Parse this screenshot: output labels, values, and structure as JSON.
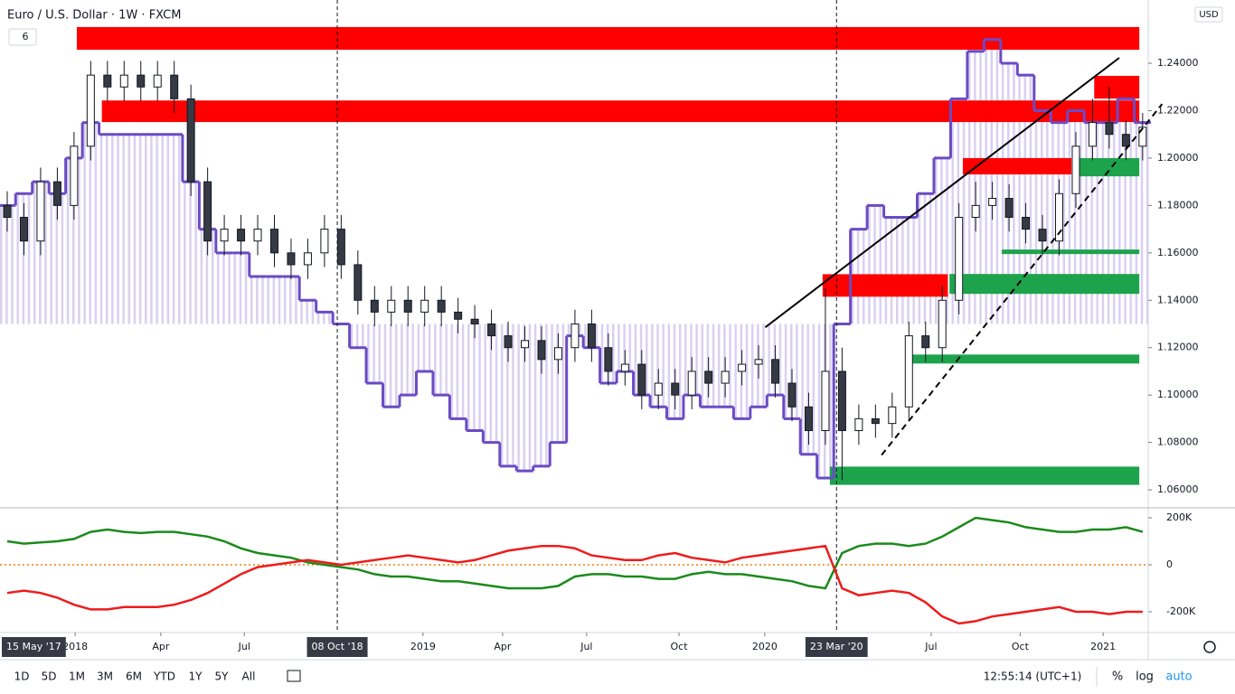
{
  "header": {
    "title": "Euro / U.S. Dollar · 1W · FXCM",
    "badge": "6",
    "currency": "USD"
  },
  "toolbar": {
    "ranges": [
      "1D",
      "5D",
      "1M",
      "3M",
      "6M",
      "YTD",
      "1Y",
      "5Y",
      "All"
    ],
    "clock": "12:55:14 (UTC+1)",
    "percent": "%",
    "log": "log",
    "auto": "auto"
  },
  "chart_data": [
    {
      "type": "candlestick",
      "x": [
        0,
        3,
        6,
        9,
        12,
        15,
        18,
        21,
        24,
        27,
        30,
        33,
        36,
        39,
        42,
        45,
        48,
        51,
        54,
        57,
        60,
        63,
        66,
        69,
        72,
        75,
        78,
        81,
        84,
        87,
        90,
        93,
        96,
        99,
        102,
        105,
        108,
        111,
        114,
        117,
        120,
        123,
        126,
        129,
        132,
        135,
        138,
        141,
        144,
        147,
        150,
        153,
        156,
        159,
        162,
        165,
        168,
        171,
        174,
        177,
        180,
        183,
        186,
        189,
        192,
        195,
        198,
        201,
        204
      ],
      "open": [
        1.18,
        1.175,
        1.165,
        1.19,
        1.18,
        1.205,
        1.235,
        1.23,
        1.235,
        1.23,
        1.235,
        1.225,
        1.19,
        1.165,
        1.17,
        1.165,
        1.17,
        1.16,
        1.155,
        1.16,
        1.17,
        1.155,
        1.14,
        1.135,
        1.14,
        1.135,
        1.14,
        1.135,
        1.132,
        1.13,
        1.125,
        1.12,
        1.123,
        1.115,
        1.12,
        1.13,
        1.12,
        1.11,
        1.113,
        1.1,
        1.105,
        1.1,
        1.11,
        1.105,
        1.11,
        1.113,
        1.115,
        1.105,
        1.095,
        1.085,
        1.11,
        1.085,
        1.09,
        1.088,
        1.095,
        1.125,
        1.12,
        1.14,
        1.175,
        1.18,
        1.183,
        1.175,
        1.17,
        1.165,
        1.185,
        1.205,
        1.215,
        1.21,
        1.205
      ],
      "high": [
        1.186,
        1.181,
        1.196,
        1.196,
        1.211,
        1.241,
        1.241,
        1.241,
        1.241,
        1.241,
        1.241,
        1.231,
        1.196,
        1.176,
        1.176,
        1.176,
        1.176,
        1.166,
        1.166,
        1.176,
        1.176,
        1.161,
        1.146,
        1.146,
        1.146,
        1.146,
        1.146,
        1.141,
        1.138,
        1.136,
        1.131,
        1.129,
        1.129,
        1.126,
        1.136,
        1.136,
        1.126,
        1.119,
        1.119,
        1.111,
        1.111,
        1.116,
        1.116,
        1.116,
        1.119,
        1.121,
        1.121,
        1.111,
        1.101,
        1.145,
        1.12,
        1.096,
        1.096,
        1.101,
        1.131,
        1.131,
        1.146,
        1.181,
        1.19,
        1.19,
        1.189,
        1.181,
        1.176,
        1.191,
        1.211,
        1.225,
        1.23,
        1.216,
        1.219
      ],
      "low": [
        1.169,
        1.159,
        1.159,
        1.174,
        1.174,
        1.199,
        1.224,
        1.224,
        1.224,
        1.224,
        1.219,
        1.184,
        1.159,
        1.159,
        1.159,
        1.159,
        1.154,
        1.149,
        1.149,
        1.154,
        1.149,
        1.134,
        1.129,
        1.129,
        1.129,
        1.129,
        1.129,
        1.126,
        1.124,
        1.119,
        1.114,
        1.114,
        1.109,
        1.109,
        1.114,
        1.114,
        1.104,
        1.104,
        1.094,
        1.094,
        1.094,
        1.094,
        1.099,
        1.099,
        1.104,
        1.107,
        1.099,
        1.089,
        1.079,
        1.079,
        1.064,
        1.079,
        1.082,
        1.082,
        1.089,
        1.114,
        1.114,
        1.134,
        1.169,
        1.174,
        1.169,
        1.164,
        1.159,
        1.159,
        1.179,
        1.199,
        1.204,
        1.199,
        1.199
      ],
      "close": [
        1.175,
        1.165,
        1.19,
        1.18,
        1.205,
        1.235,
        1.23,
        1.235,
        1.23,
        1.235,
        1.225,
        1.19,
        1.165,
        1.17,
        1.165,
        1.17,
        1.16,
        1.155,
        1.16,
        1.17,
        1.155,
        1.14,
        1.135,
        1.14,
        1.135,
        1.14,
        1.135,
        1.132,
        1.13,
        1.125,
        1.12,
        1.123,
        1.115,
        1.12,
        1.13,
        1.12,
        1.11,
        1.113,
        1.1,
        1.105,
        1.1,
        1.11,
        1.105,
        1.11,
        1.113,
        1.115,
        1.105,
        1.095,
        1.085,
        1.11,
        1.085,
        1.09,
        1.088,
        1.095,
        1.125,
        1.12,
        1.14,
        1.175,
        1.18,
        1.183,
        1.175,
        1.17,
        1.165,
        1.185,
        1.205,
        1.215,
        1.21,
        1.205,
        1.213
      ],
      "up_color": "#ffffff",
      "down_color": "#363a45",
      "wick_color": "#131722",
      "step_line": {
        "color": "#6a4bc4",
        "base": 1.13,
        "fill": "#d9d0f0",
        "values": [
          1.18,
          1.185,
          1.19,
          1.185,
          1.2,
          1.215,
          1.21,
          1.21,
          1.21,
          1.21,
          1.21,
          1.19,
          1.17,
          1.16,
          1.16,
          1.15,
          1.15,
          1.15,
          1.14,
          1.135,
          1.13,
          1.12,
          1.105,
          1.095,
          1.1,
          1.11,
          1.1,
          1.09,
          1.085,
          1.08,
          1.07,
          1.068,
          1.07,
          1.08,
          1.125,
          1.12,
          1.105,
          1.11,
          1.1,
          1.095,
          1.09,
          1.1,
          1.095,
          1.095,
          1.09,
          1.095,
          1.1,
          1.09,
          1.075,
          1.065,
          1.13,
          1.17,
          1.18,
          1.175,
          1.175,
          1.185,
          1.2,
          1.225,
          1.245,
          1.25,
          1.24,
          1.235,
          1.22,
          1.215,
          1.22,
          1.215,
          1.215,
          1.225,
          1.215
        ]
      },
      "zones": [
        {
          "x": [
            12.5,
            203.4
          ],
          "y": [
            1.2457,
            1.2553
          ],
          "color": "#ff0000"
        },
        {
          "x": [
            17,
            203.4
          ],
          "y": [
            1.2152,
            1.2243
          ],
          "color": "#ff0000"
        },
        {
          "x": [
            195.3,
            203.4
          ],
          "y": [
            1.2251,
            1.2347
          ],
          "color": "#ff0000"
        },
        {
          "x": [
            171.7,
            191.2
          ],
          "y": [
            1.1931,
            1.2
          ],
          "color": "#ff0000"
        },
        {
          "x": [
            191.7,
            203.4
          ],
          "y": [
            1.1923,
            1.2
          ],
          "color": "#1ea34d"
        },
        {
          "x": [
            178.7,
            203.4
          ],
          "y": [
            1.1595,
            1.1614
          ],
          "color": "#1ea34d"
        },
        {
          "x": [
            146.5,
            169
          ],
          "y": [
            1.1415,
            1.151
          ],
          "color": "#ff0000"
        },
        {
          "x": [
            169.3,
            203.4
          ],
          "y": [
            1.1427,
            1.1511
          ],
          "color": "#1ea34d"
        },
        {
          "x": [
            162,
            203.4
          ],
          "y": [
            1.1133,
            1.1171
          ],
          "color": "#1ea34d"
        },
        {
          "x": [
            147.8,
            203.4
          ],
          "y": [
            1.0621,
            1.0698
          ],
          "color": "#1ea34d"
        }
      ],
      "trendlines": [
        {
          "x": [
            136.2,
            199.8
          ],
          "y": [
            1.1286,
            1.2423
          ],
          "dashed": false
        },
        {
          "x": [
            157.1,
            207.5
          ],
          "y": [
            1.0747,
            1.2228
          ],
          "dashed": true
        }
      ],
      "vlines": [
        59.3,
        149
      ],
      "xlim": [
        -1.3,
        205
      ],
      "xticks": [
        {
          "value": 12.2,
          "label": "2018"
        },
        {
          "value": 27.6,
          "label": "Apr"
        },
        {
          "value": 42.6,
          "label": "Jul"
        },
        {
          "value": 74.7,
          "label": "2019"
        },
        {
          "value": 89,
          "label": "Apr"
        },
        {
          "value": 104.1,
          "label": "Jul"
        },
        {
          "value": 120.7,
          "label": "Oct"
        },
        {
          "value": 136.1,
          "label": "2020"
        },
        {
          "value": 166,
          "label": "Jul"
        },
        {
          "value": 182,
          "label": "Oct"
        },
        {
          "value": 196.9,
          "label": "2021"
        }
      ],
      "highlighted_dates": [
        {
          "value": 0,
          "label": "15 May '17"
        },
        {
          "value": 59.3,
          "label": "08 Oct '18"
        },
        {
          "value": 149,
          "label": "23 Mar '20"
        }
      ],
      "ylim": [
        1.0524,
        1.2648
      ],
      "yticks": [
        {
          "value": 1.06,
          "label": "1.06000"
        },
        {
          "value": 1.08,
          "label": "1.08000"
        },
        {
          "value": 1.1,
          "label": "1.10000"
        },
        {
          "value": 1.12,
          "label": "1.12000"
        },
        {
          "value": 1.14,
          "label": "1.14000"
        },
        {
          "value": 1.16,
          "label": "1.16000"
        },
        {
          "value": 1.18,
          "label": "1.18000"
        },
        {
          "value": 1.2,
          "label": "1.20000"
        },
        {
          "value": 1.22,
          "label": "1.22000"
        },
        {
          "value": 1.24,
          "label": "1.24000"
        }
      ]
    },
    {
      "type": "line",
      "ylim": [
        -288500,
        242300
      ],
      "yticks": [
        {
          "value": -200000,
          "label": "-200K"
        },
        0,
        {
          "value": 200000,
          "label": "200K"
        }
      ],
      "hline": 0,
      "hline_color": "#f57c00",
      "series": [
        {
          "color": "#1b8a1b",
          "values": [
            100000,
            90000,
            95000,
            100000,
            110000,
            140000,
            150000,
            140000,
            135000,
            140000,
            140000,
            130000,
            120000,
            100000,
            70000,
            50000,
            40000,
            30000,
            10000,
            0,
            -10000,
            -20000,
            -40000,
            -50000,
            -50000,
            -60000,
            -70000,
            -70000,
            -80000,
            -90000,
            -100000,
            -100000,
            -100000,
            -90000,
            -50000,
            -40000,
            -40000,
            -50000,
            -50000,
            -60000,
            -60000,
            -40000,
            -30000,
            -40000,
            -40000,
            -50000,
            -60000,
            -70000,
            -90000,
            -100000,
            50000,
            80000,
            90000,
            90000,
            80000,
            90000,
            120000,
            160000,
            200000,
            190000,
            180000,
            160000,
            150000,
            140000,
            140000,
            150000,
            150000,
            160000,
            140000
          ]
        },
        {
          "color": "#ee1c1c",
          "values": [
            -120000,
            -110000,
            -120000,
            -140000,
            -170000,
            -190000,
            -190000,
            -180000,
            -180000,
            -180000,
            -170000,
            -150000,
            -120000,
            -80000,
            -40000,
            -10000,
            0,
            10000,
            20000,
            10000,
            0,
            10000,
            20000,
            30000,
            40000,
            30000,
            20000,
            10000,
            20000,
            40000,
            60000,
            70000,
            80000,
            80000,
            70000,
            40000,
            30000,
            20000,
            20000,
            40000,
            50000,
            30000,
            20000,
            10000,
            30000,
            40000,
            50000,
            60000,
            70000,
            80000,
            -100000,
            -130000,
            -120000,
            -110000,
            -120000,
            -160000,
            -220000,
            -250000,
            -240000,
            -220000,
            -210000,
            -200000,
            -190000,
            -180000,
            -200000,
            -200000,
            -210000,
            -200000,
            -200000
          ]
        }
      ]
    }
  ]
}
